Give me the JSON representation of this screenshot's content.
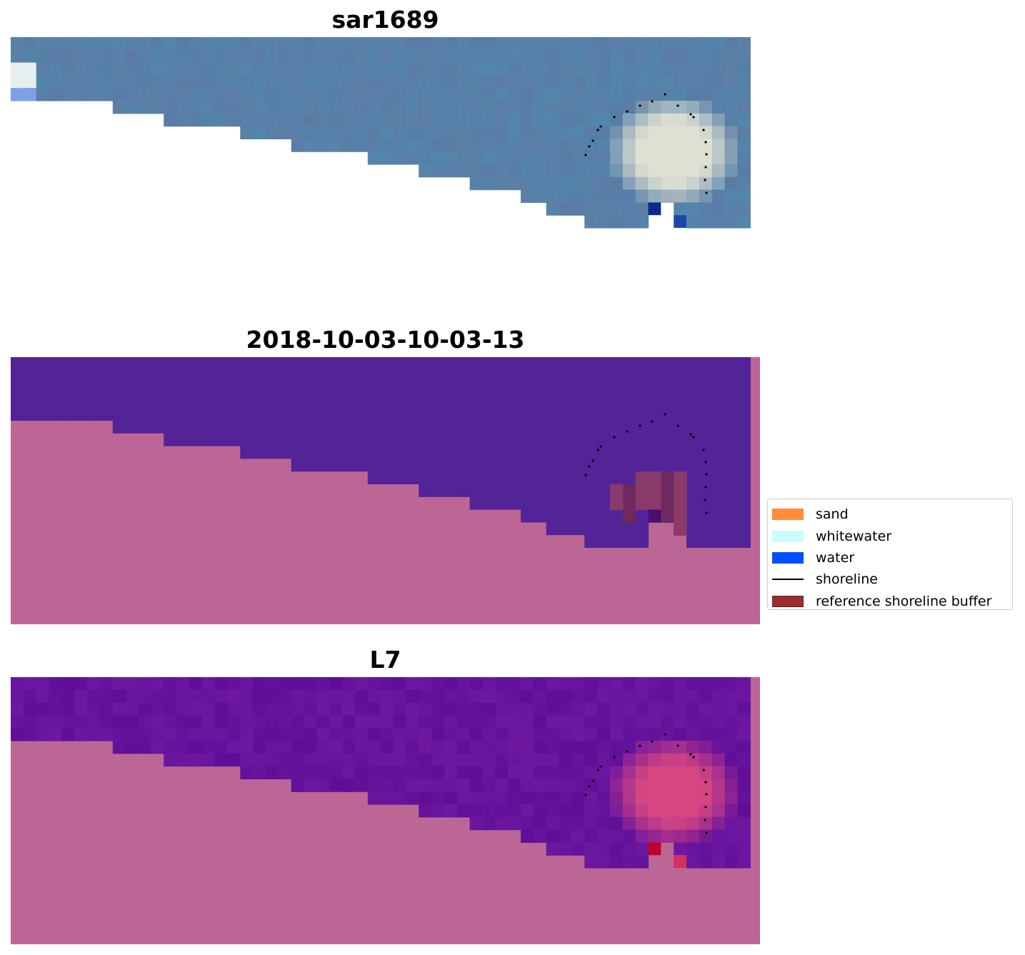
{
  "panels": [
    {
      "id": "rgb",
      "title": "sar1689"
    },
    {
      "id": "classified",
      "title": "2018-10-03-10-03-13"
    },
    {
      "id": "index",
      "title": "L7"
    }
  ],
  "legend": [
    {
      "label": "sand",
      "color": "#ff8c3a",
      "kind": "box"
    },
    {
      "label": "whitewater",
      "color": "#c8fffc",
      "kind": "box"
    },
    {
      "label": "water",
      "color": "#0050ff",
      "kind": "box"
    },
    {
      "label": "shoreline",
      "color": "#000000",
      "kind": "line"
    },
    {
      "label": "reference shoreline buffer",
      "color": "#9b2d2d",
      "kind": "box"
    }
  ],
  "colors": {
    "land_mask": "#bb6695",
    "water_class": "#532398",
    "ocean_rgb": "#5a7ea8",
    "ocean_index": "#5f0e98"
  }
}
